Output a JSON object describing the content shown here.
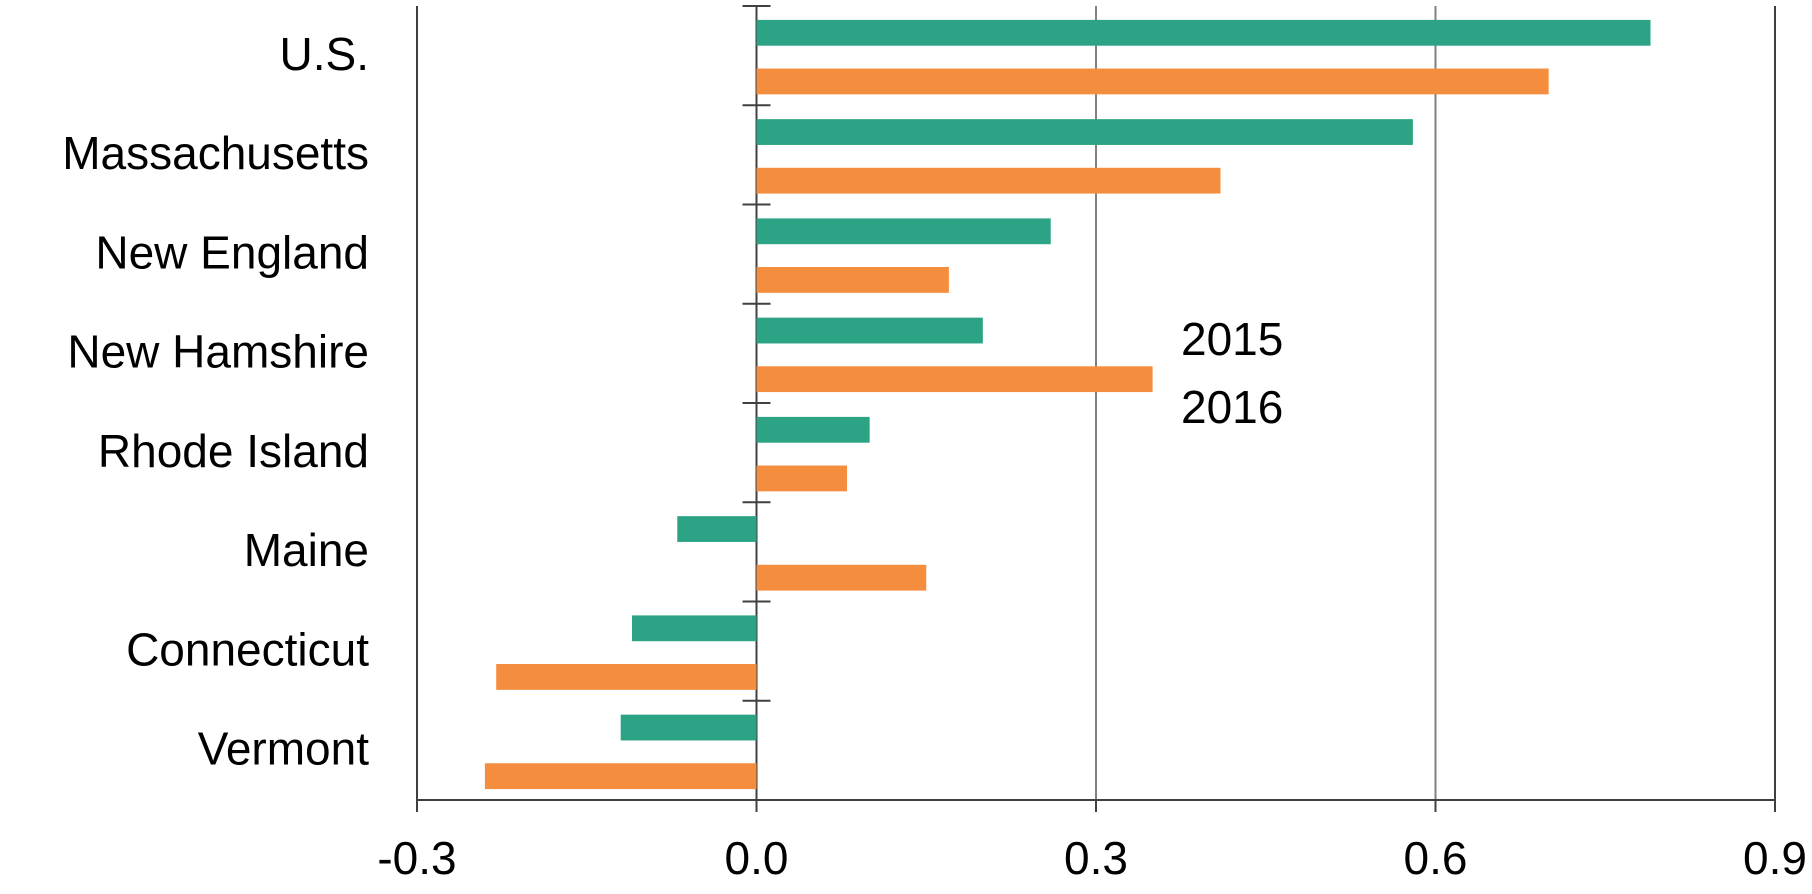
{
  "chart_data": {
    "type": "hbar",
    "categories": [
      "U.S.",
      "Massachusetts",
      "New England",
      "New Hamshire",
      "Rhode Island",
      "Maine",
      "Connecticut",
      "Vermont"
    ],
    "series": [
      {
        "name": "2015",
        "color": "#2ca384",
        "values": [
          0.79,
          0.58,
          0.26,
          0.2,
          0.1,
          -0.07,
          -0.11,
          -0.12
        ]
      },
      {
        "name": "2016",
        "color": "#f58d3e",
        "values": [
          0.7,
          0.41,
          0.17,
          0.35,
          0.08,
          0.15,
          -0.23,
          -0.24
        ]
      }
    ],
    "xlim": [
      -0.3,
      0.9
    ],
    "xticks": [
      -0.3,
      {
        "value": 0,
        "label": "0.0"
      },
      0.3,
      0.6,
      0.9
    ],
    "grid": true,
    "legend": "center"
  }
}
